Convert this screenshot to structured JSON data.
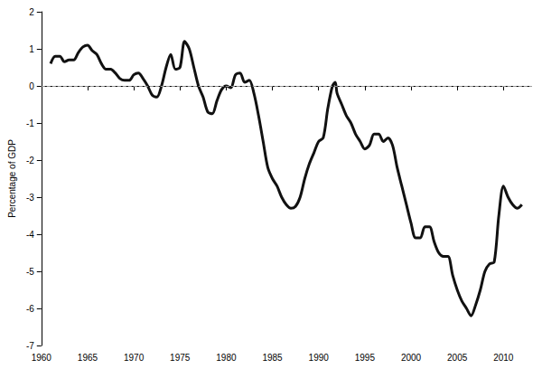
{
  "chart_data": {
    "type": "line",
    "y_label": "Percentage of GDP",
    "x": [
      1961.0,
      1961.5,
      1962.0,
      1962.5,
      1963.0,
      1963.5,
      1964.0,
      1964.5,
      1965.0,
      1965.5,
      1966.0,
      1966.5,
      1967.0,
      1967.5,
      1968.0,
      1968.5,
      1969.0,
      1969.5,
      1970.0,
      1970.5,
      1971.0,
      1971.5,
      1972.0,
      1972.5,
      1973.0,
      1973.5,
      1974.0,
      1974.5,
      1975.0,
      1975.5,
      1976.0,
      1976.5,
      1977.0,
      1977.5,
      1978.0,
      1978.5,
      1979.0,
      1979.5,
      1980.0,
      1980.5,
      1981.0,
      1981.5,
      1982.0,
      1982.5,
      1983.0,
      1983.5,
      1984.0,
      1984.5,
      1985.0,
      1985.5,
      1986.0,
      1986.5,
      1987.0,
      1987.5,
      1988.0,
      1988.5,
      1989.0,
      1989.5,
      1990.0,
      1990.5,
      1991.0,
      1991.5,
      1991.8,
      1992.0,
      1992.5,
      1993.0,
      1993.5,
      1994.0,
      1994.5,
      1995.0,
      1995.5,
      1996.0,
      1996.5,
      1997.0,
      1997.5,
      1998.0,
      1998.5,
      1999.0,
      1999.5,
      2000.0,
      2000.5,
      2001.0,
      2001.5,
      2002.0,
      2002.5,
      2003.0,
      2003.5,
      2004.0,
      2004.5,
      2005.0,
      2005.5,
      2006.0,
      2006.5,
      2007.0,
      2007.5,
      2008.0,
      2008.5,
      2009.0,
      2009.5,
      2010.0,
      2010.5,
      2011.0,
      2011.5,
      2012.0
    ],
    "values": [
      0.6,
      0.8,
      0.8,
      0.65,
      0.7,
      0.7,
      0.9,
      1.05,
      1.1,
      0.95,
      0.85,
      0.6,
      0.45,
      0.45,
      0.35,
      0.2,
      0.15,
      0.15,
      0.3,
      0.35,
      0.2,
      0.0,
      -0.25,
      -0.3,
      0.0,
      0.5,
      0.85,
      0.45,
      0.5,
      1.2,
      1.0,
      0.5,
      0.0,
      -0.3,
      -0.7,
      -0.75,
      -0.4,
      -0.1,
      0.0,
      -0.05,
      0.3,
      0.35,
      0.1,
      0.15,
      -0.2,
      -0.8,
      -1.5,
      -2.2,
      -2.5,
      -2.7,
      -3.0,
      -3.2,
      -3.3,
      -3.25,
      -3.0,
      -2.5,
      -2.1,
      -1.8,
      -1.5,
      -1.4,
      -0.6,
      0.0,
      0.1,
      -0.2,
      -0.5,
      -0.8,
      -1.0,
      -1.3,
      -1.5,
      -1.7,
      -1.6,
      -1.3,
      -1.3,
      -1.5,
      -1.4,
      -1.6,
      -2.2,
      -2.7,
      -3.2,
      -3.7,
      -4.1,
      -4.1,
      -3.8,
      -3.8,
      -4.2,
      -4.5,
      -4.6,
      -4.6,
      -5.1,
      -5.5,
      -5.8,
      -6.0,
      -6.2,
      -5.9,
      -5.5,
      -5.0,
      -4.8,
      -4.75,
      -3.5,
      -2.7,
      -3.0,
      -3.2,
      -3.3,
      -3.2
    ],
    "color": "#111111",
    "hline": 0,
    "xlim": [
      1960,
      2013
    ],
    "xticks": [
      1960,
      1965,
      1970,
      1975,
      1980,
      1985,
      1990,
      1995,
      2000,
      2005,
      2010
    ],
    "ylim": [
      -7,
      2
    ],
    "yticks": [
      -7,
      -6,
      -5,
      -4,
      -3,
      -2,
      -1,
      0,
      1,
      2
    ],
    "grid": false
  }
}
